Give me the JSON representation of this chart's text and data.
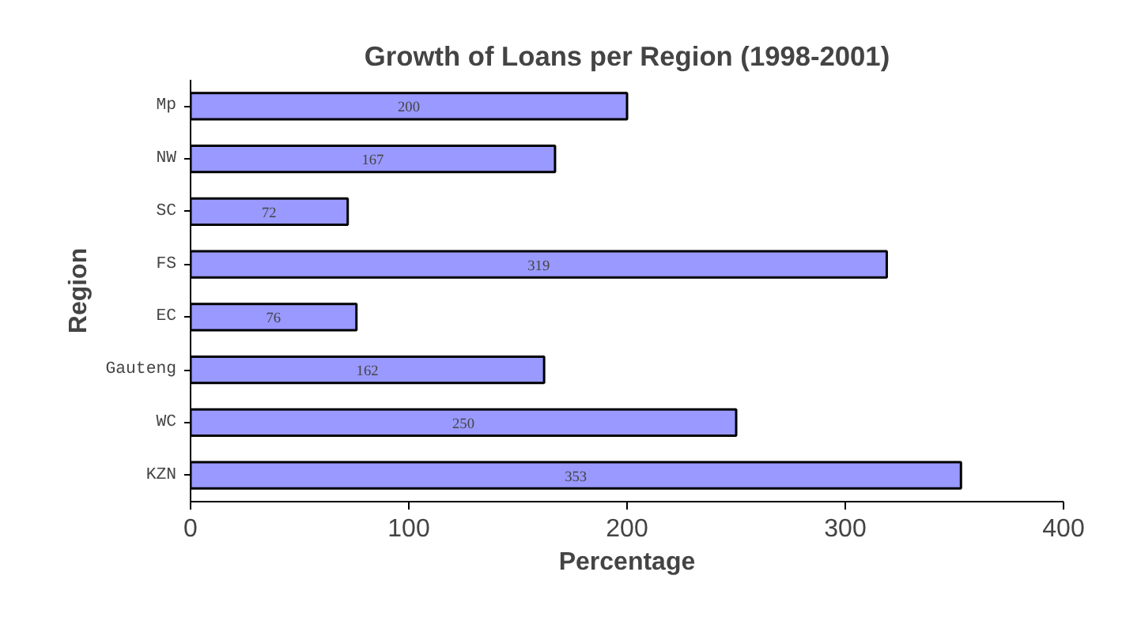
{
  "chart_data": {
    "type": "bar",
    "orientation": "horizontal",
    "title": "Growth of Loans per Region (1998-2001)",
    "xlabel": "Percentage",
    "ylabel": "Region",
    "categories": [
      "Mp",
      "NW",
      "SC",
      "FS",
      "EC",
      "Gauteng",
      "WC",
      "KZN"
    ],
    "values": [
      200,
      167,
      72,
      319,
      76,
      162,
      250,
      353
    ],
    "color": "#9999ff",
    "xlim": [
      0,
      400
    ],
    "xticks": [
      0,
      100,
      200,
      300,
      400
    ],
    "grid": false,
    "data_labels": true
  }
}
